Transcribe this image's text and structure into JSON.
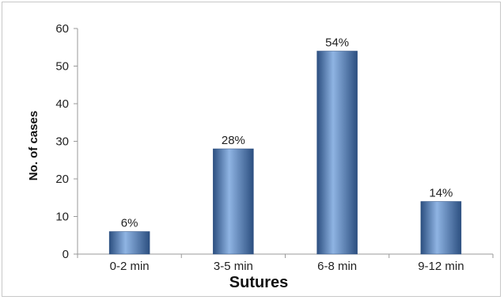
{
  "chart_data": {
    "type": "bar",
    "categories": [
      "0-2 min",
      "3-5 min",
      "6-8 min",
      "9-12 min"
    ],
    "values": [
      6,
      28,
      54,
      14
    ],
    "data_labels": [
      "6%",
      "28%",
      "54%",
      "14%"
    ],
    "xlabel": "Sutures",
    "ylabel": "No. of cases",
    "ylim": [
      0,
      60
    ],
    "yticks": [
      0,
      10,
      20,
      30,
      40,
      50,
      60
    ],
    "grid": false,
    "legend": "none",
    "bar_color": "#4a7ebb",
    "bar_highlight": "#8fb4e3",
    "bar_shadow": "#2c4f80"
  }
}
